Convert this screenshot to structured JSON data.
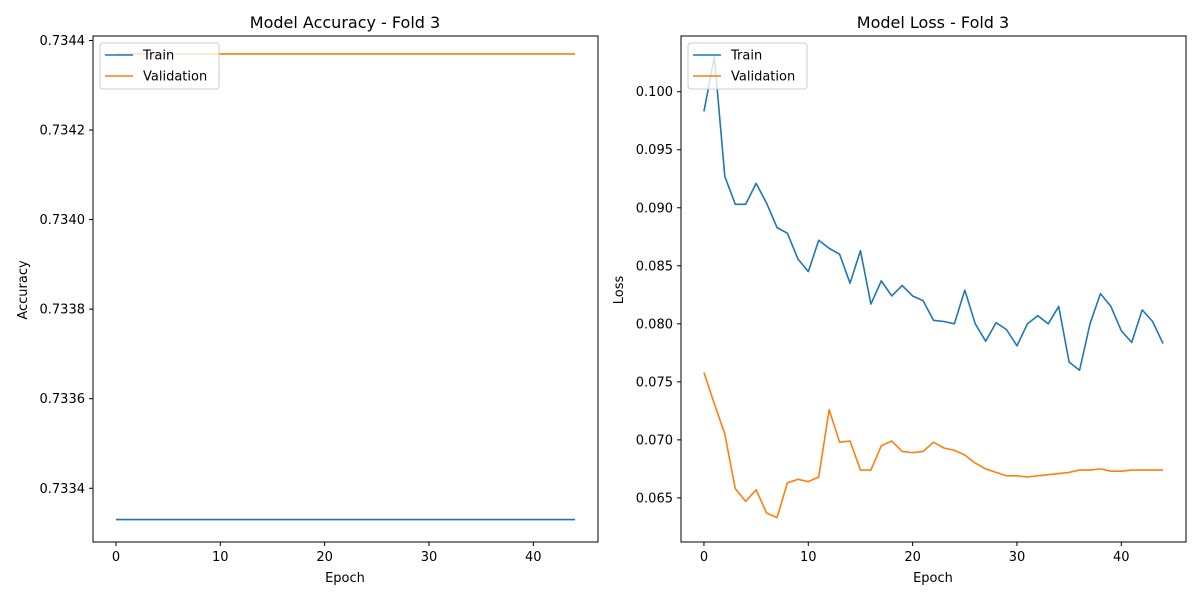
{
  "colors": {
    "train": "#1f77b4",
    "validation": "#ff7f0e"
  },
  "chart_data": [
    {
      "type": "line",
      "title": "Model Accuracy - Fold 3",
      "xlabel": "Epoch",
      "ylabel": "Accuracy",
      "xlim": [
        -2.2,
        46.2
      ],
      "ylim": [
        0.73328,
        0.73441
      ],
      "xticks": [
        0,
        10,
        20,
        30,
        40
      ],
      "xtick_labels": [
        "0",
        "10",
        "20",
        "30",
        "40"
      ],
      "yticks": [
        0.7334,
        0.7336,
        0.7338,
        0.734,
        0.7342,
        0.7344
      ],
      "ytick_labels": [
        "0.7334",
        "0.7336",
        "0.7338",
        "0.7340",
        "0.7342",
        "0.7344"
      ],
      "grid": false,
      "legend": "upper left",
      "x": [
        0,
        1,
        2,
        3,
        4,
        5,
        6,
        7,
        8,
        9,
        10,
        11,
        12,
        13,
        14,
        15,
        16,
        17,
        18,
        19,
        20,
        21,
        22,
        23,
        24,
        25,
        26,
        27,
        28,
        29,
        30,
        31,
        32,
        33,
        34,
        35,
        36,
        37,
        38,
        39,
        40,
        41,
        42,
        43,
        44
      ],
      "series": [
        {
          "name": "Train",
          "color": "#1f77b4",
          "values": [
            0.73333,
            0.73333,
            0.73333,
            0.73333,
            0.73333,
            0.73333,
            0.73333,
            0.73333,
            0.73333,
            0.73333,
            0.73333,
            0.73333,
            0.73333,
            0.73333,
            0.73333,
            0.73333,
            0.73333,
            0.73333,
            0.73333,
            0.73333,
            0.73333,
            0.73333,
            0.73333,
            0.73333,
            0.73333,
            0.73333,
            0.73333,
            0.73333,
            0.73333,
            0.73333,
            0.73333,
            0.73333,
            0.73333,
            0.73333,
            0.73333,
            0.73333,
            0.73333,
            0.73333,
            0.73333,
            0.73333,
            0.73333,
            0.73333,
            0.73333,
            0.73333,
            0.73333
          ]
        },
        {
          "name": "Validation",
          "color": "#ff7f0e",
          "values": [
            0.73437,
            0.73437,
            0.73437,
            0.73437,
            0.73437,
            0.73437,
            0.73437,
            0.73437,
            0.73437,
            0.73437,
            0.73437,
            0.73437,
            0.73437,
            0.73437,
            0.73437,
            0.73437,
            0.73437,
            0.73437,
            0.73437,
            0.73437,
            0.73437,
            0.73437,
            0.73437,
            0.73437,
            0.73437,
            0.73437,
            0.73437,
            0.73437,
            0.73437,
            0.73437,
            0.73437,
            0.73437,
            0.73437,
            0.73437,
            0.73437,
            0.73437,
            0.73437,
            0.73437,
            0.73437,
            0.73437,
            0.73437,
            0.73437,
            0.73437,
            0.73437,
            0.73437
          ]
        }
      ]
    },
    {
      "type": "line",
      "title": "Model Loss - Fold 3",
      "xlabel": "Epoch",
      "ylabel": "Loss",
      "xlim": [
        -2.2,
        46.2
      ],
      "ylim": [
        0.0612,
        0.1048
      ],
      "xticks": [
        0,
        10,
        20,
        30,
        40
      ],
      "xtick_labels": [
        "0",
        "10",
        "20",
        "30",
        "40"
      ],
      "yticks": [
        0.065,
        0.07,
        0.075,
        0.08,
        0.085,
        0.09,
        0.095,
        0.1
      ],
      "ytick_labels": [
        "0.065",
        "0.070",
        "0.075",
        "0.080",
        "0.085",
        "0.090",
        "0.095",
        "0.100"
      ],
      "grid": false,
      "legend": "upper left",
      "x": [
        0,
        1,
        2,
        3,
        4,
        5,
        6,
        7,
        8,
        9,
        10,
        11,
        12,
        13,
        14,
        15,
        16,
        17,
        18,
        19,
        20,
        21,
        22,
        23,
        24,
        25,
        26,
        27,
        28,
        29,
        30,
        31,
        32,
        33,
        34,
        35,
        36,
        37,
        38,
        39,
        40,
        41,
        42,
        43,
        44
      ],
      "series": [
        {
          "name": "Train",
          "color": "#1f77b4",
          "values": [
            0.0983,
            0.103,
            0.0927,
            0.0903,
            0.0903,
            0.0921,
            0.0904,
            0.0883,
            0.0878,
            0.0856,
            0.0845,
            0.0872,
            0.0865,
            0.086,
            0.0835,
            0.0863,
            0.0817,
            0.0837,
            0.0824,
            0.0833,
            0.0824,
            0.082,
            0.0803,
            0.0802,
            0.08,
            0.0829,
            0.08,
            0.0785,
            0.0801,
            0.0795,
            0.0781,
            0.08,
            0.0807,
            0.08,
            0.0815,
            0.0767,
            0.076,
            0.08,
            0.0826,
            0.0815,
            0.0794,
            0.0784,
            0.0812,
            0.0802,
            0.0783
          ]
        },
        {
          "name": "Validation",
          "color": "#ff7f0e",
          "values": [
            0.0758,
            0.0731,
            0.0705,
            0.0658,
            0.0647,
            0.0657,
            0.0637,
            0.0633,
            0.0663,
            0.0666,
            0.0664,
            0.0668,
            0.0726,
            0.0698,
            0.0699,
            0.0674,
            0.0674,
            0.0695,
            0.0699,
            0.069,
            0.0689,
            0.069,
            0.0698,
            0.0693,
            0.0691,
            0.0687,
            0.068,
            0.0675,
            0.0672,
            0.0669,
            0.0669,
            0.0668,
            0.0669,
            0.067,
            0.0671,
            0.0672,
            0.0674,
            0.0674,
            0.0675,
            0.0673,
            0.0673,
            0.0674,
            0.0674,
            0.0674,
            0.0674
          ]
        }
      ]
    }
  ]
}
